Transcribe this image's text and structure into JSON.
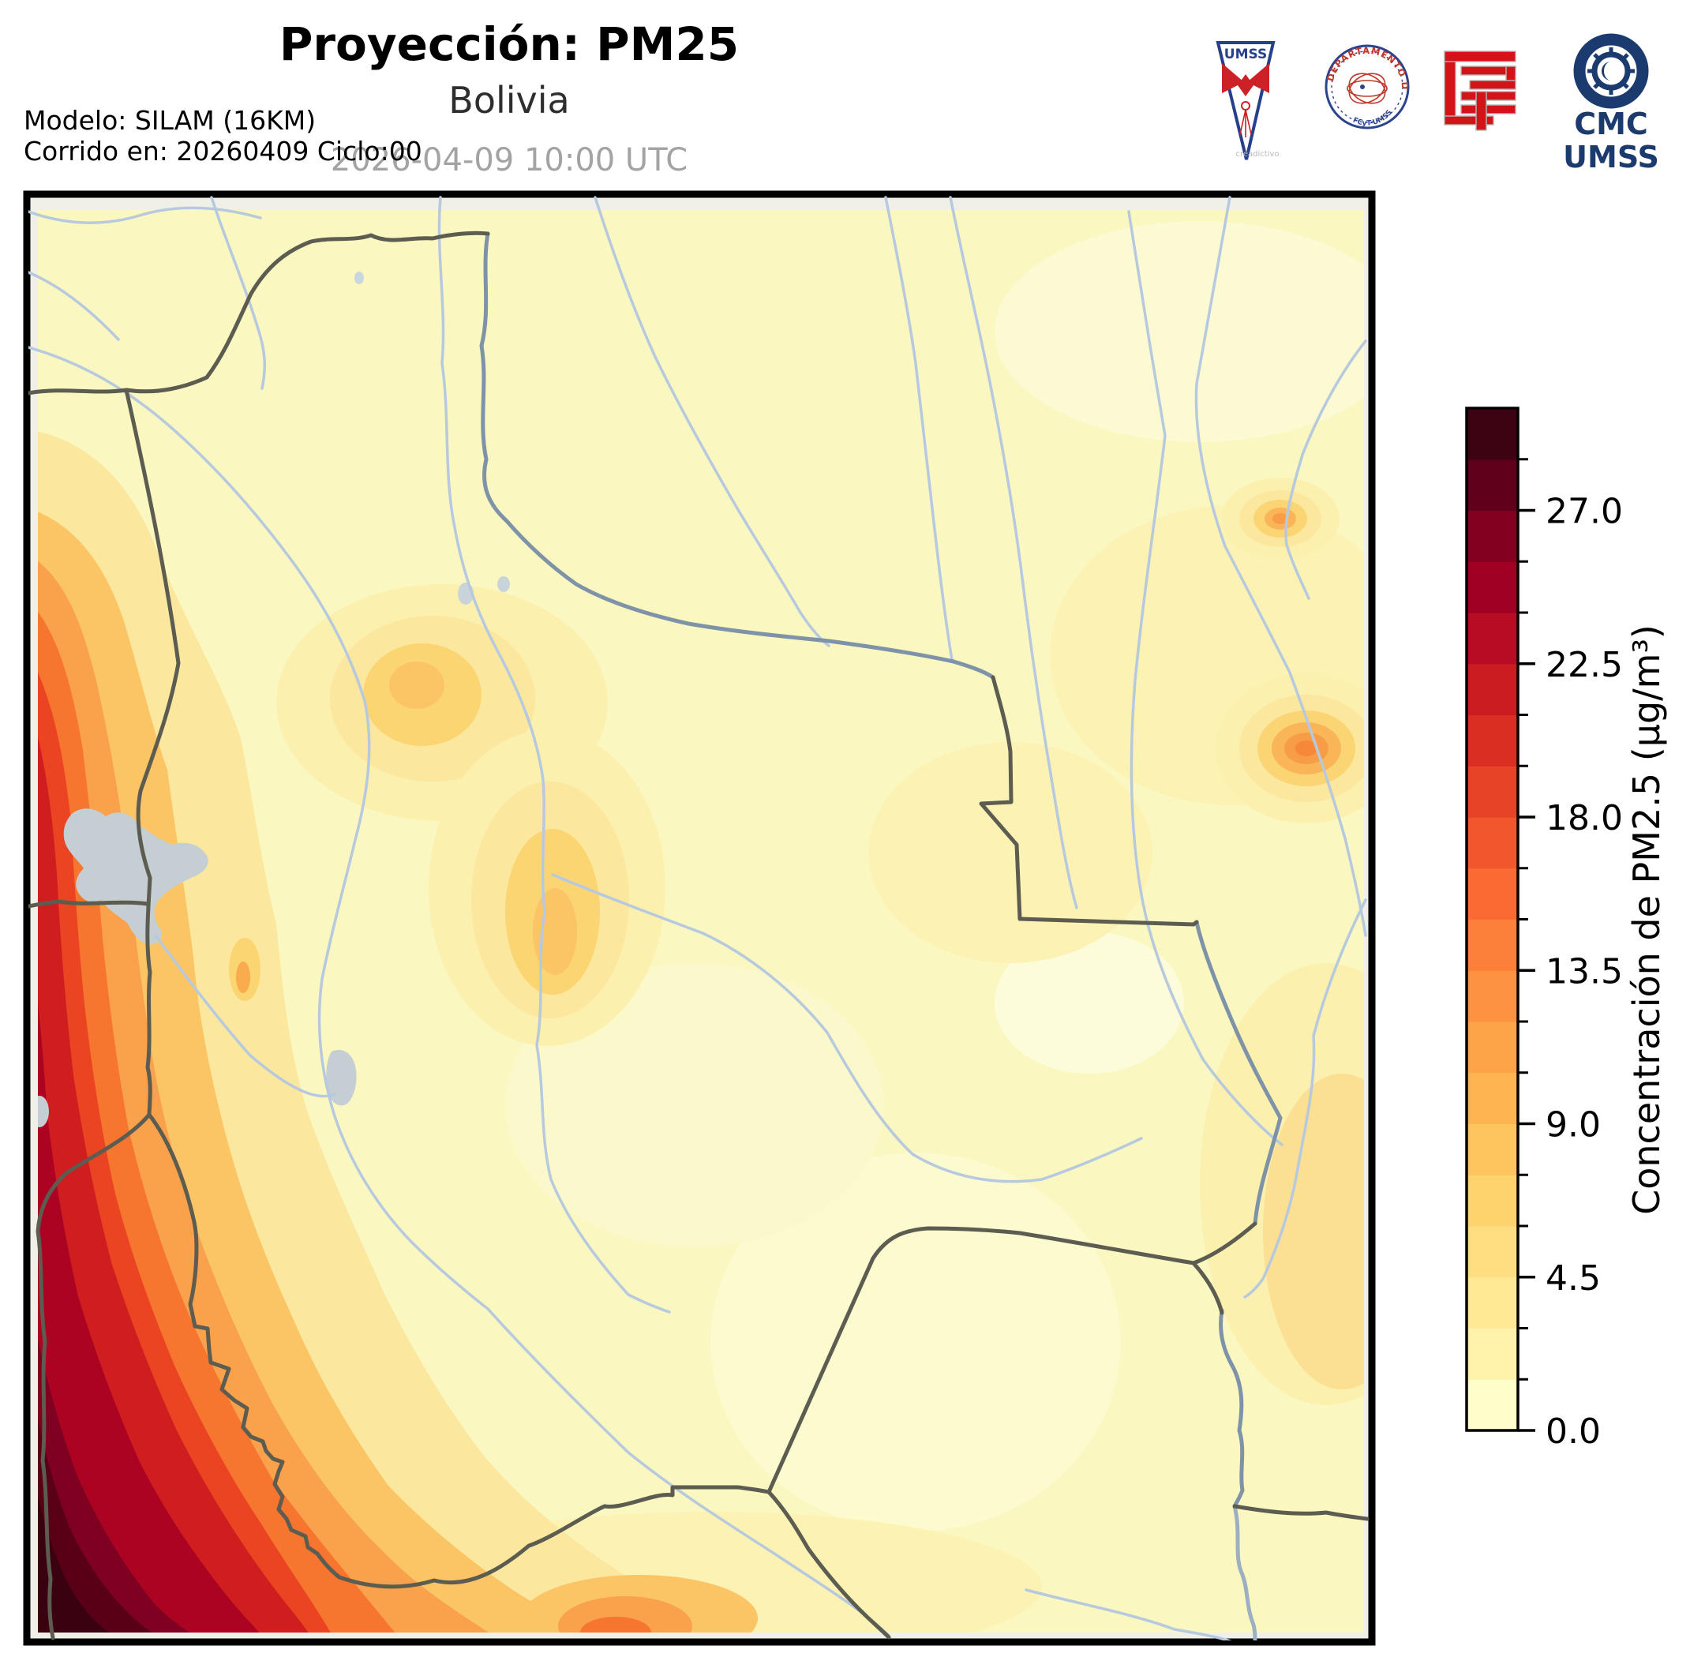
{
  "header": {
    "title": "Proyección: PM25",
    "subtitle": "Bolivia",
    "datetime": "2026-04-09 10:00 UTC",
    "model_line1": "Modelo: SILAM (16KM)",
    "model_line2": "Corrido en: 20260409 Ciclo:00"
  },
  "logos": {
    "pennant_text": "UMSS",
    "seal_arc_text": "DEPARTAMENTO DE FÍSICA",
    "seal_bottom_text": "FCyT-UMSS",
    "watermark": "creadictivo",
    "cmc_top": "CMC",
    "cmc_bottom": "UMSS"
  },
  "colorbar": {
    "label": "Concentración de PM2.5 (µg/m³)",
    "vmin": 0,
    "vmax": 30,
    "major_tick_labels": [
      "27.0",
      "22.5",
      "18.0",
      "13.5",
      "9.0",
      "4.5",
      "0.0"
    ],
    "major_tick_values": [
      27,
      22.5,
      18,
      13.5,
      9,
      4.5,
      0
    ],
    "minor_tick_step": 1.5,
    "segment_colors_low_to_high": [
      "#fffdc9",
      "#fff3ac",
      "#ffe995",
      "#fede80",
      "#fed26d",
      "#fec45e",
      "#feb551",
      "#fda448",
      "#fd9341",
      "#fc7f3a",
      "#f96b33",
      "#f1562d",
      "#e74327",
      "#da2e22",
      "#cb1c22",
      "#b80c25",
      "#a00023",
      "#830020",
      "#60001b",
      "#3d0313"
    ]
  },
  "map": {
    "region": "Bolivia",
    "field": "PM2.5"
  }
}
